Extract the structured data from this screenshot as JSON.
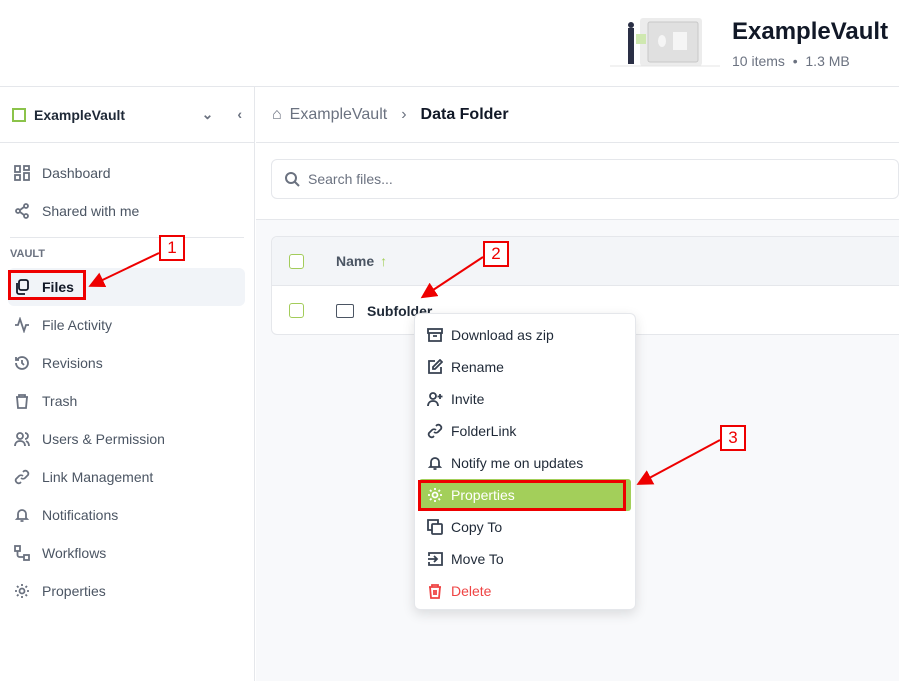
{
  "header": {
    "vault_name": "ExampleVault",
    "items": "10 items",
    "dot": "•",
    "size": "1.3 MB"
  },
  "sidebar": {
    "vault_name": "ExampleVault",
    "items_top": [
      {
        "label": "Dashboard",
        "icon": "dashboard-icon"
      },
      {
        "label": "Shared with me",
        "icon": "share-icon"
      }
    ],
    "section": "VAULT",
    "items": [
      {
        "label": "Files",
        "icon": "files-icon"
      },
      {
        "label": "File Activity",
        "icon": "activity-icon"
      },
      {
        "label": "Revisions",
        "icon": "history-icon"
      },
      {
        "label": "Trash",
        "icon": "trash-icon"
      },
      {
        "label": "Users & Permission",
        "icon": "users-icon"
      },
      {
        "label": "Link Management",
        "icon": "link-icon"
      },
      {
        "label": "Notifications",
        "icon": "bell-icon"
      },
      {
        "label": "Workflows",
        "icon": "workflow-icon"
      },
      {
        "label": "Properties",
        "icon": "gear-icon"
      }
    ]
  },
  "breadcrumb": {
    "root": "ExampleVault",
    "current": "Data Folder"
  },
  "search": {
    "placeholder": "Search files..."
  },
  "table": {
    "col_name": "Name",
    "sort": "↑",
    "rows": [
      {
        "name": "Subfolder"
      }
    ]
  },
  "menu": {
    "items": [
      {
        "label": "Download as zip"
      },
      {
        "label": "Rename"
      },
      {
        "label": "Invite"
      },
      {
        "label": "FolderLink"
      },
      {
        "label": "Notify me on updates"
      },
      {
        "label": "Properties"
      },
      {
        "label": "Copy To"
      },
      {
        "label": "Move To"
      },
      {
        "label": "Delete"
      }
    ]
  },
  "annotations": [
    "1",
    "2",
    "3"
  ],
  "colors": {
    "accent": "#a3cf5a",
    "danger": "#ef4444",
    "annotation": "#ee0000"
  }
}
